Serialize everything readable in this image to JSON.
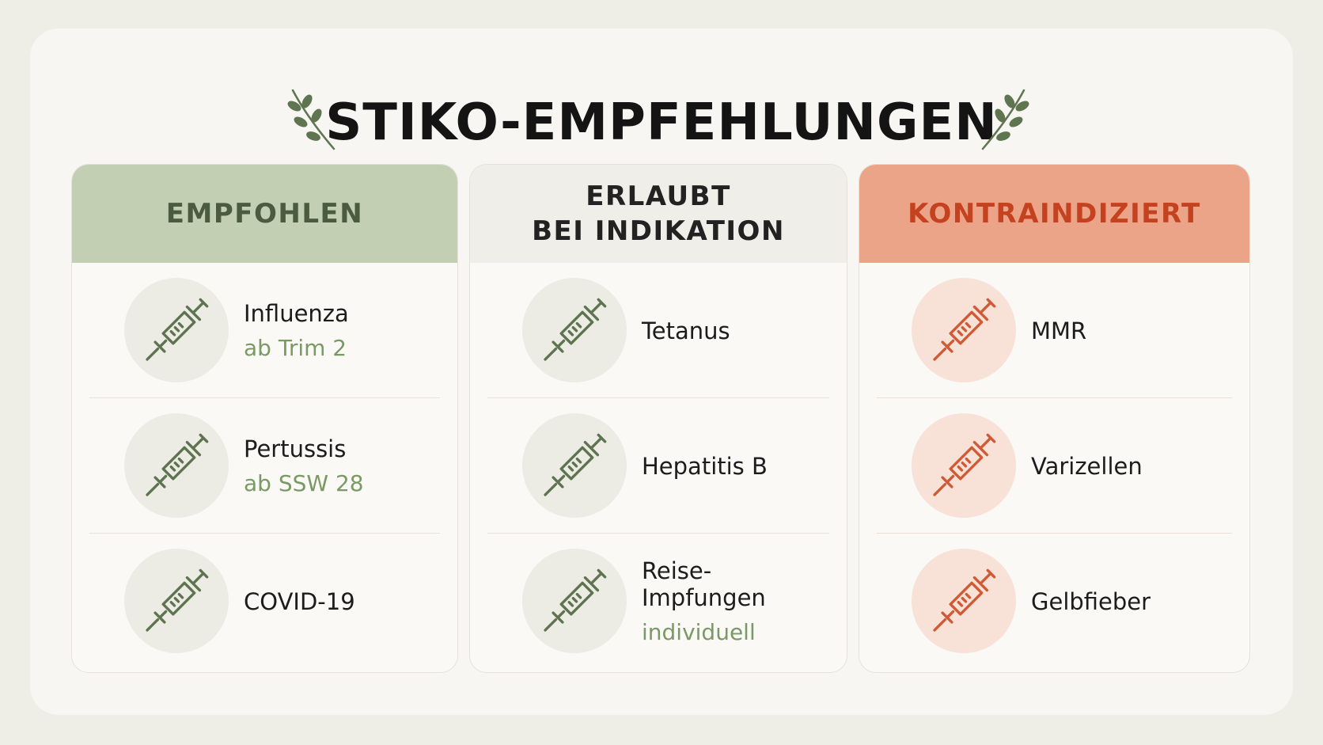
{
  "title": "STIKO-EMPFEHLUNGEN",
  "columns": [
    {
      "header": [
        "EMPFOHLEN"
      ],
      "items": [
        {
          "name": "Influenza",
          "note": "ab Trim 2"
        },
        {
          "name": "Pertussis",
          "note": "ab SSW 28"
        },
        {
          "name": "COVID-19"
        }
      ]
    },
    {
      "header": [
        "ERLAUBT",
        "BEI INDIKATION"
      ],
      "items": [
        {
          "name": "Tetanus"
        },
        {
          "name": "Hepatitis B"
        },
        {
          "name": "Reise-Impfungen",
          "note": "individuell"
        }
      ]
    },
    {
      "header": [
        "KONTRAINDIZIERT"
      ],
      "items": [
        {
          "name": "MMR"
        },
        {
          "name": "Varizellen"
        },
        {
          "name": "Gelbfieber"
        }
      ]
    }
  ]
}
